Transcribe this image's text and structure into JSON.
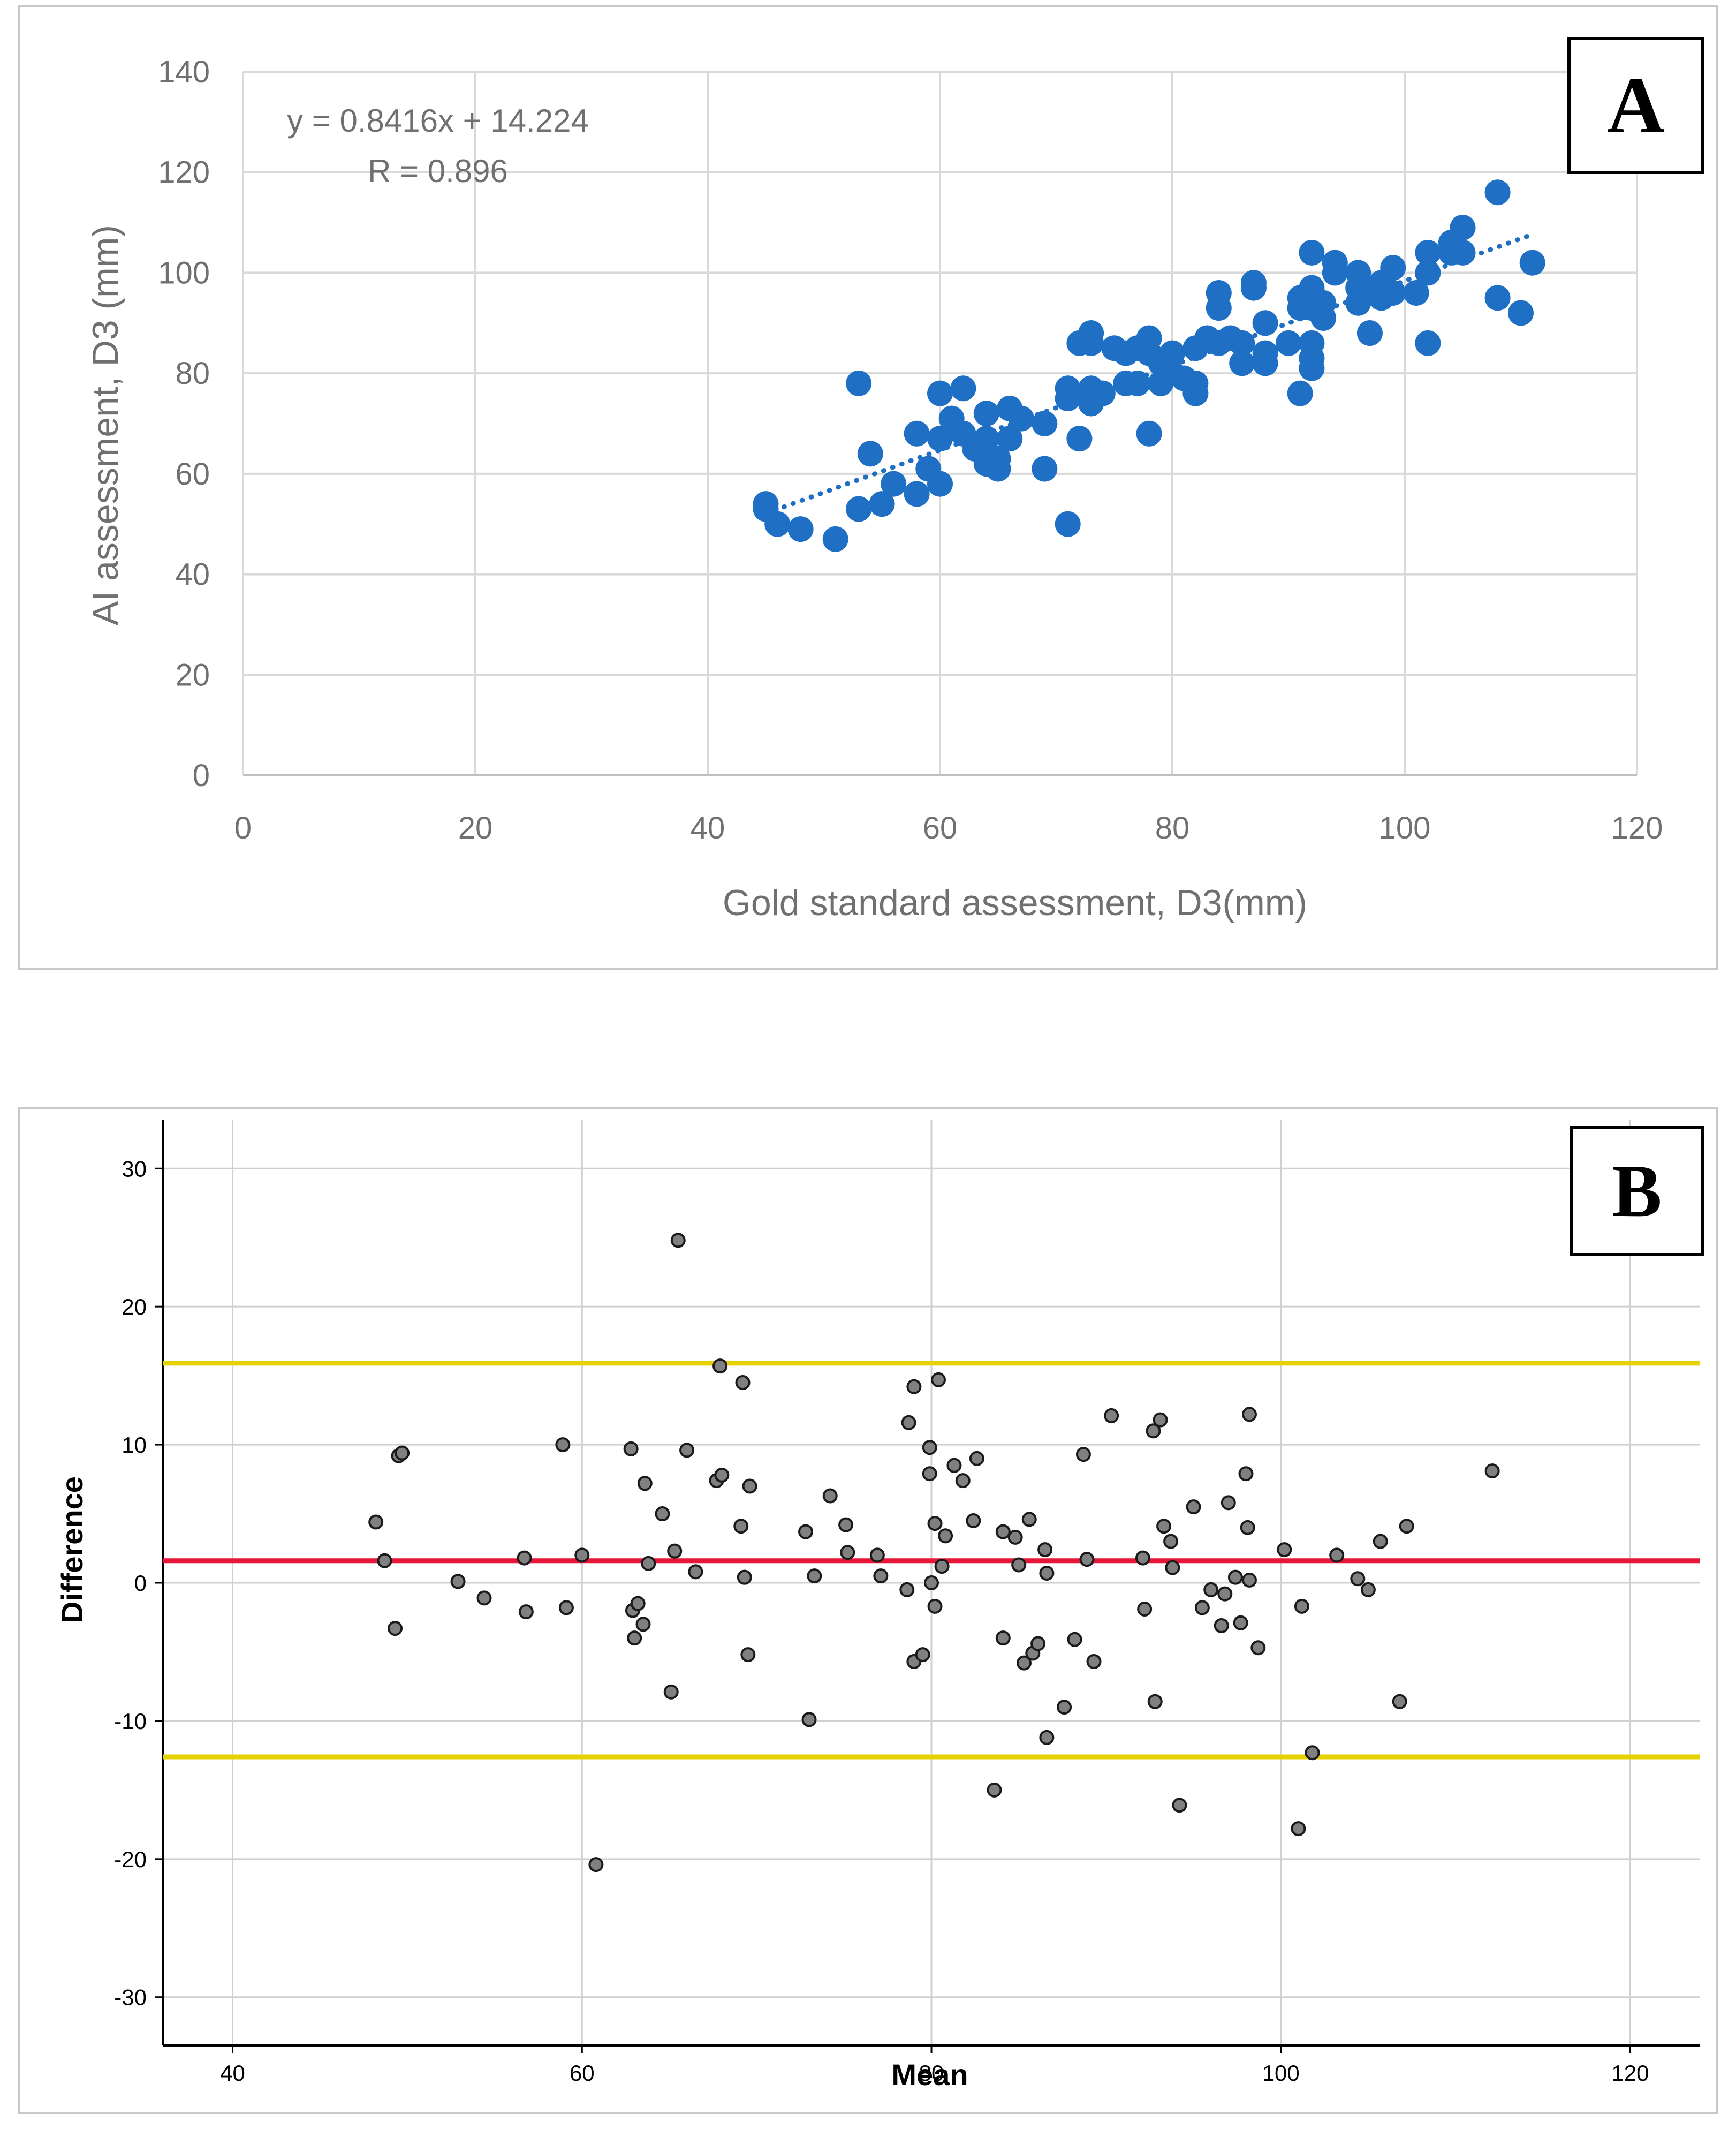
{
  "chart_data": [
    {
      "id": "panel-a",
      "type": "scatter",
      "panel_label": "A",
      "xlabel": "Gold standard assessment, D3(mm)",
      "ylabel": "AI assessment, D3 (mm)",
      "xlim": [
        0,
        120
      ],
      "ylim": [
        0,
        140
      ],
      "x_ticks": [
        0,
        20,
        40,
        60,
        80,
        100,
        120
      ],
      "y_ticks": [
        0,
        20,
        40,
        60,
        80,
        100,
        120,
        140
      ],
      "grid": true,
      "equation": "y = 0.8416x + 14.224",
      "r_text": "R = 0.896",
      "trendline": {
        "slope": 0.8416,
        "intercept": 14.224,
        "x_range": [
          45,
          111
        ],
        "style": "dotted"
      },
      "marker_color": "#1f6fc5",
      "points": [
        [
          45,
          54
        ],
        [
          45,
          53
        ],
        [
          46,
          50
        ],
        [
          48,
          49
        ],
        [
          51,
          47
        ],
        [
          53,
          53
        ],
        [
          53,
          78
        ],
        [
          54,
          64
        ],
        [
          55,
          54
        ],
        [
          56,
          58
        ],
        [
          58,
          56
        ],
        [
          58,
          68
        ],
        [
          59,
          61
        ],
        [
          60,
          58
        ],
        [
          60,
          67
        ],
        [
          60,
          76
        ],
        [
          61,
          71
        ],
        [
          62,
          68
        ],
        [
          62,
          77
        ],
        [
          63,
          66
        ],
        [
          63,
          65
        ],
        [
          64,
          72
        ],
        [
          64,
          62
        ],
        [
          64,
          67
        ],
        [
          65,
          61
        ],
        [
          65,
          63
        ],
        [
          66,
          73
        ],
        [
          66,
          67
        ],
        [
          67,
          71
        ],
        [
          69,
          61
        ],
        [
          69,
          70
        ],
        [
          71,
          77
        ],
        [
          71,
          75
        ],
        [
          71,
          50
        ],
        [
          72,
          86
        ],
        [
          72,
          67
        ],
        [
          73,
          88
        ],
        [
          73,
          86
        ],
        [
          73,
          77
        ],
        [
          73,
          74
        ],
        [
          74,
          76
        ],
        [
          75,
          85
        ],
        [
          76,
          78
        ],
        [
          76,
          84
        ],
        [
          77,
          78
        ],
        [
          77,
          85
        ],
        [
          78,
          87
        ],
        [
          78,
          68
        ],
        [
          78,
          84
        ],
        [
          79,
          78
        ],
        [
          79,
          82
        ],
        [
          80,
          80
        ],
        [
          80,
          84
        ],
        [
          81,
          79
        ],
        [
          82,
          78
        ],
        [
          82,
          76
        ],
        [
          82,
          85
        ],
        [
          83,
          87
        ],
        [
          84,
          96
        ],
        [
          84,
          93
        ],
        [
          84,
          86
        ],
        [
          85,
          87
        ],
        [
          86,
          82
        ],
        [
          86,
          86
        ],
        [
          87,
          98
        ],
        [
          87,
          97
        ],
        [
          88,
          84
        ],
        [
          88,
          82
        ],
        [
          88,
          90
        ],
        [
          90,
          86
        ],
        [
          91,
          95
        ],
        [
          91,
          93
        ],
        [
          91,
          76
        ],
        [
          92,
          104
        ],
        [
          92,
          97
        ],
        [
          92,
          93
        ],
        [
          92,
          86
        ],
        [
          92,
          83
        ],
        [
          92,
          81
        ],
        [
          93,
          94
        ],
        [
          93,
          91
        ],
        [
          94,
          102
        ],
        [
          94,
          100
        ],
        [
          96,
          100
        ],
        [
          96,
          97
        ],
        [
          96,
          94
        ],
        [
          97,
          88
        ],
        [
          97,
          96
        ],
        [
          98,
          95
        ],
        [
          98,
          98
        ],
        [
          99,
          96
        ],
        [
          99,
          101
        ],
        [
          101,
          96
        ],
        [
          102,
          104
        ],
        [
          102,
          100
        ],
        [
          102,
          86
        ],
        [
          104,
          104
        ],
        [
          104,
          106
        ],
        [
          105,
          109
        ],
        [
          105,
          104
        ],
        [
          108,
          116
        ],
        [
          108,
          95
        ],
        [
          110,
          92
        ],
        [
          111,
          102
        ]
      ]
    },
    {
      "id": "panel-b",
      "type": "scatter",
      "panel_label": "B",
      "xlabel": "Mean",
      "ylabel": "Difference",
      "xlim": [
        36,
        124
      ],
      "ylim": [
        -33.5,
        33.5
      ],
      "x_ticks": [
        40,
        60,
        80,
        100,
        120
      ],
      "y_ticks": [
        30,
        20,
        10,
        0,
        -10,
        -20,
        -30
      ],
      "x_tick_labels": [
        "40",
        "60",
        "80",
        "100",
        "120"
      ],
      "y_tick_labels": [
        "30",
        "20",
        "10",
        "0",
        "-10",
        "-20",
        "-30"
      ],
      "grid": true,
      "reference_lines": [
        {
          "name": "upper-limit-of-agreement",
          "y": 15.9,
          "color": "#e6d200"
        },
        {
          "name": "mean-difference",
          "y": 1.6,
          "color": "#e8173a"
        },
        {
          "name": "lower-limit-of-agreement",
          "y": -12.6,
          "color": "#e6d200"
        }
      ],
      "marker_color": "#808080",
      "points": [
        [
          48.2,
          4.4
        ],
        [
          48.7,
          1.6
        ],
        [
          49.3,
          -3.3
        ],
        [
          49.5,
          9.2
        ],
        [
          49.7,
          9.4
        ],
        [
          52.9,
          0.1
        ],
        [
          54.4,
          -1.1
        ],
        [
          56.7,
          1.8
        ],
        [
          56.8,
          -2.1
        ],
        [
          58.9,
          10
        ],
        [
          59.1,
          -1.8
        ],
        [
          60,
          2
        ],
        [
          60.8,
          -20.4
        ],
        [
          62.8,
          9.7
        ],
        [
          62.9,
          -2
        ],
        [
          63,
          -4
        ],
        [
          63.2,
          -1.5
        ],
        [
          63.5,
          -3
        ],
        [
          63.6,
          7.2
        ],
        [
          63.8,
          1.4
        ],
        [
          64.6,
          5
        ],
        [
          65.1,
          -7.9
        ],
        [
          65.3,
          2.3
        ],
        [
          65.5,
          24.8
        ],
        [
          66,
          9.6
        ],
        [
          66.5,
          0.8
        ],
        [
          67.7,
          7.4
        ],
        [
          67.9,
          15.7
        ],
        [
          68,
          7.8
        ],
        [
          69.1,
          4.1
        ],
        [
          69.2,
          14.5
        ],
        [
          69.3,
          0.4
        ],
        [
          69.5,
          -5.2
        ],
        [
          69.6,
          7
        ],
        [
          72.8,
          3.7
        ],
        [
          73,
          -9.9
        ],
        [
          73.3,
          0.5
        ],
        [
          74.2,
          6.3
        ],
        [
          75.1,
          4.2
        ],
        [
          75.2,
          2.2
        ],
        [
          76.9,
          2
        ],
        [
          77.1,
          0.5
        ],
        [
          78.6,
          -0.5
        ],
        [
          78.7,
          11.6
        ],
        [
          79,
          14.2
        ],
        [
          79,
          -5.7
        ],
        [
          79.5,
          -5.2
        ],
        [
          79.9,
          9.8
        ],
        [
          79.9,
          7.9
        ],
        [
          80,
          0
        ],
        [
          80.2,
          4.3
        ],
        [
          80.2,
          -1.7
        ],
        [
          80.4,
          14.7
        ],
        [
          80.6,
          1.2
        ],
        [
          80.8,
          3.4
        ],
        [
          81.3,
          8.5
        ],
        [
          81.8,
          7.4
        ],
        [
          82.4,
          4.5
        ],
        [
          82.6,
          9
        ],
        [
          83.6,
          -15
        ],
        [
          84.1,
          3.7
        ],
        [
          84.1,
          -4
        ],
        [
          84.8,
          3.3
        ],
        [
          85,
          1.3
        ],
        [
          85.3,
          -5.8
        ],
        [
          85.6,
          4.6
        ],
        [
          85.8,
          -5.1
        ],
        [
          86.1,
          -4.4
        ],
        [
          86.5,
          2.4
        ],
        [
          86.6,
          0.7
        ],
        [
          86.6,
          -11.2
        ],
        [
          87.6,
          -9
        ],
        [
          88.2,
          -4.1
        ],
        [
          88.7,
          9.3
        ],
        [
          88.9,
          1.7
        ],
        [
          89.3,
          -5.7
        ],
        [
          90.3,
          12.1
        ],
        [
          92.1,
          1.8
        ],
        [
          92.2,
          -1.9
        ],
        [
          92.7,
          11
        ],
        [
          92.8,
          -8.6
        ],
        [
          93.1,
          11.8
        ],
        [
          93.3,
          4.1
        ],
        [
          93.7,
          3
        ],
        [
          93.8,
          1.1
        ],
        [
          94.2,
          -16.1
        ],
        [
          95,
          5.5
        ],
        [
          95.5,
          -1.8
        ],
        [
          96,
          -0.5
        ],
        [
          96.6,
          -3.1
        ],
        [
          96.8,
          -0.8
        ],
        [
          97,
          5.8
        ],
        [
          97.4,
          0.4
        ],
        [
          97.7,
          -2.9
        ],
        [
          98,
          7.9
        ],
        [
          98.1,
          4
        ],
        [
          98.2,
          12.2
        ],
        [
          98.2,
          0.2
        ],
        [
          98.7,
          -4.7
        ],
        [
          100.2,
          2.4
        ],
        [
          101,
          -17.8
        ],
        [
          101.2,
          -1.7
        ],
        [
          101.8,
          -12.3
        ],
        [
          103.2,
          2
        ],
        [
          104.4,
          0.3
        ],
        [
          105,
          -0.5
        ],
        [
          105.7,
          3
        ],
        [
          106.8,
          -8.6
        ],
        [
          107.2,
          4.1
        ],
        [
          112.1,
          8.1
        ]
      ]
    }
  ]
}
